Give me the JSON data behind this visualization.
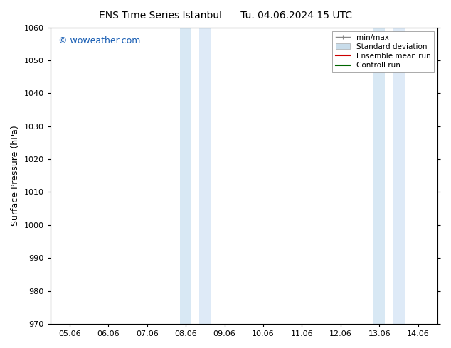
{
  "title_left": "ENS Time Series Istanbul",
  "title_right": "Tu. 04.06.2024 15 UTC",
  "ylabel": "Surface Pressure (hPa)",
  "ylim": [
    970,
    1060
  ],
  "yticks": [
    970,
    980,
    990,
    1000,
    1010,
    1020,
    1030,
    1040,
    1050,
    1060
  ],
  "xtick_labels": [
    "05.06",
    "06.06",
    "07.06",
    "08.06",
    "09.06",
    "10.06",
    "11.06",
    "12.06",
    "13.06",
    "14.06"
  ],
  "xtick_positions": [
    0,
    1,
    2,
    3,
    4,
    5,
    6,
    7,
    8,
    9
  ],
  "xlim": [
    -0.5,
    9.5
  ],
  "shaded_regions": [
    {
      "x_start": 2.75,
      "x_end": 3.25,
      "color": "#dce9f5"
    },
    {
      "x_start": 3.25,
      "x_end": 3.75,
      "color": "#e8f2fa"
    },
    {
      "x_start": 7.75,
      "x_end": 8.25,
      "color": "#dce9f5"
    },
    {
      "x_start": 8.25,
      "x_end": 8.75,
      "color": "#e8f2fa"
    }
  ],
  "watermark_text": "© woweather.com",
  "watermark_color": "#1a5fb4",
  "legend_items": [
    {
      "label": "min/max",
      "color": "#888888",
      "type": "errorbar"
    },
    {
      "label": "Standard deviation",
      "color": "#c8dcea",
      "type": "patch"
    },
    {
      "label": "Ensemble mean run",
      "color": "#cc0000",
      "type": "line"
    },
    {
      "label": "Controll run",
      "color": "#006600",
      "type": "line"
    }
  ],
  "bg_color": "#ffffff",
  "plot_bg_color": "#ffffff",
  "spine_color": "#000000",
  "title_fontsize": 10,
  "axis_label_fontsize": 9,
  "tick_fontsize": 8,
  "legend_fontsize": 7.5,
  "figsize": [
    6.34,
    4.9
  ],
  "dpi": 100
}
